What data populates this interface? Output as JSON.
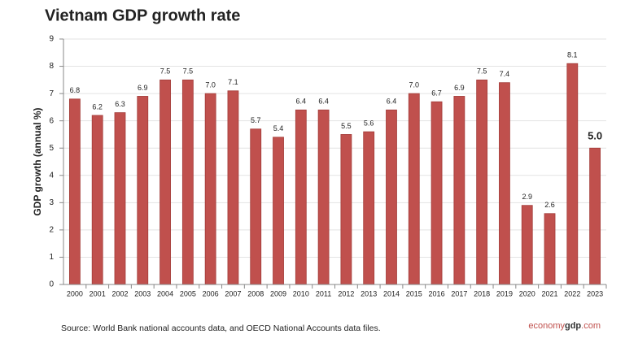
{
  "chart_data": {
    "type": "bar",
    "title": "Vietnam GDP growth rate",
    "y_label": "GDP growth (annual %)",
    "categories": [
      "2000",
      "2001",
      "2002",
      "2003",
      "2004",
      "2005",
      "2006",
      "2007",
      "2008",
      "2009",
      "2010",
      "2011",
      "2012",
      "2013",
      "2014",
      "2015",
      "2016",
      "2017",
      "2018",
      "2019",
      "2020",
      "2021",
      "2022",
      "2023"
    ],
    "values": [
      6.8,
      6.2,
      6.3,
      6.9,
      7.5,
      7.5,
      7.0,
      7.1,
      5.7,
      5.4,
      6.4,
      6.4,
      5.5,
      5.6,
      6.4,
      7.0,
      6.7,
      6.9,
      7.5,
      7.4,
      2.9,
      2.6,
      8.1,
      5.0
    ],
    "value_labels": [
      "6.8",
      "6.2",
      "6.3",
      "6.9",
      "7.5",
      "7.5",
      "7.0",
      "7.1",
      "5.7",
      "5.4",
      "6.4",
      "6.4",
      "5.5",
      "5.6",
      "6.4",
      "7.0",
      "6.7",
      "6.9",
      "7.5",
      "7.4",
      "2.9",
      "2.6",
      "8.1",
      "5.0"
    ],
    "color": "#c0504d",
    "ylim": [
      0,
      9
    ],
    "yticks": [
      0,
      1,
      2,
      3,
      4,
      5,
      6,
      7,
      8,
      9
    ],
    "grid": true,
    "source": "Source:  World Bank national accounts data, and OECD National Accounts data files.",
    "brand": [
      "economy",
      "gdp",
      ".com"
    ]
  }
}
